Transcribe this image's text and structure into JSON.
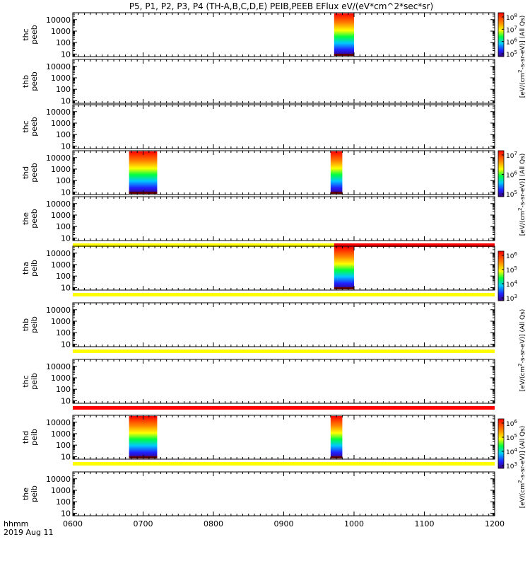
{
  "title": "P5, P1, P2, P3, P4 (TH-A,B,C,D,E) PEIB,PEEB EFlux eV/(eV*cm^2*sec*sr)",
  "colors": {
    "bar_yellow": "#ffff00",
    "bar_red": "#ff0000",
    "axis": "#000000"
  },
  "chart_data": {
    "type": "heatmap",
    "x": {
      "label": "hhmm",
      "date_label": "2019 Aug 11",
      "range": [
        "0600",
        "1200"
      ],
      "ticks": [
        "0600",
        "0700",
        "0800",
        "0900",
        "1000",
        "1100",
        "1200"
      ]
    },
    "y_scale": "log",
    "y_tick_labels": [
      "10000",
      "1000",
      "100",
      "10"
    ],
    "panels": [
      {
        "label": [
          "thc",
          "peeb"
        ],
        "ylim": [
          6,
          40000
        ],
        "blocks": [
          {
            "start": "0943",
            "end": "1000",
            "peak": 0.85
          }
        ],
        "bar_below": null
      },
      {
        "label": [
          "thb",
          "peeb"
        ],
        "ylim": [
          6,
          40000
        ],
        "blocks": [],
        "bar_below": null
      },
      {
        "label": [
          "thc",
          "peeb"
        ],
        "ylim": [
          6,
          40000
        ],
        "blocks": [],
        "bar_below": null
      },
      {
        "label": [
          "thd",
          "peeb"
        ],
        "ylim": [
          6,
          40000
        ],
        "blocks": [
          {
            "start": "0648",
            "end": "0712",
            "peak": 0.85
          },
          {
            "start": "0940",
            "end": "0950",
            "peak": 0.9
          }
        ],
        "bar_below": null
      },
      {
        "label": [
          "the",
          "peeb"
        ],
        "ylim": [
          6,
          40000
        ],
        "blocks": [],
        "bar_below": "mixed"
      },
      {
        "label": [
          "tha",
          "peib"
        ],
        "ylim": [
          6,
          40000
        ],
        "blocks": [
          {
            "start": "0943",
            "end": "1000",
            "peak": 0.92
          }
        ],
        "bar_below": "yellow"
      },
      {
        "label": [
          "thb",
          "peib"
        ],
        "ylim": [
          6,
          40000
        ],
        "blocks": [],
        "bar_below": "yellow"
      },
      {
        "label": [
          "thc",
          "peib"
        ],
        "ylim": [
          6,
          40000
        ],
        "blocks": [],
        "bar_below": "red"
      },
      {
        "label": [
          "thd",
          "peib"
        ],
        "ylim": [
          6,
          40000
        ],
        "blocks": [
          {
            "start": "0648",
            "end": "0712",
            "peak": 0.85
          },
          {
            "start": "0940",
            "end": "0950",
            "peak": 0.85
          }
        ],
        "bar_below": "yellow"
      },
      {
        "label": [
          "the",
          "peib"
        ],
        "ylim": [
          6,
          40000
        ],
        "blocks": [],
        "bar_below": null
      }
    ],
    "colorbars": [
      {
        "panel": 0,
        "labels": [
          "10^8",
          "10^7",
          "10^6",
          "10^5"
        ]
      },
      {
        "panel": 3,
        "labels": [
          "10^7",
          "10^6",
          "10^5"
        ]
      },
      {
        "panel": 5,
        "labels": [
          "10^6",
          "10^5",
          "10^4",
          "10^3"
        ]
      },
      {
        "panel": 8,
        "labels": [
          "10^6",
          "10^5",
          "10^4",
          "10^3"
        ]
      }
    ],
    "side_labels": [
      "[eV/(cm^2-s-sr-eV)] (All Qs)",
      "[eV/(cm^2-s-sr-eV)] (All Qs)",
      "[eV/(cm^2-s-sr-eV)] (All Qs)",
      "[eV/(cm^2-s-sr-eV)] (All Qs)"
    ]
  }
}
